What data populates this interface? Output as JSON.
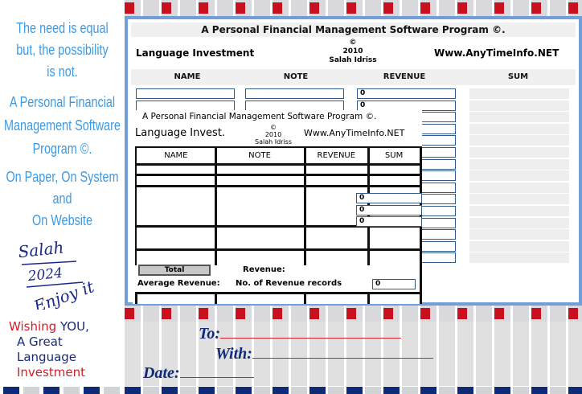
{
  "left": {
    "tagline": [
      "The need is equal",
      "but, the possibility",
      "is not."
    ],
    "program": [
      "A Personal Financial",
      "Management Software",
      "Program ©."
    ],
    "platforms": [
      "On Paper, On System",
      "and",
      "On Website"
    ],
    "signature": [
      "Salah",
      "2024",
      "Enjoy it"
    ],
    "wish": {
      "w1": "Wishing",
      "w2": "YOU,",
      "w3": "A Great",
      "w4": "Language",
      "w5": "Investment"
    }
  },
  "form": {
    "title": "A Personal Financial Management Software Program ©.",
    "app_name": "Language Investment",
    "copyright": "©",
    "year": "2010",
    "author": "Salah Idriss",
    "website": "Www.AnyTimeInfo.NET",
    "columns": [
      "NAME",
      "NOTE",
      "REVENUE",
      "SUM"
    ],
    "revenue_value": "0"
  },
  "paper": {
    "title": "A Personal Financial Management Software Program ©.",
    "app_name": "Language Invest.",
    "copyright": "©",
    "year": "2010",
    "author": "Salah Idriss",
    "website": "Www.AnyTimeInfo.NET",
    "columns": [
      "NAME",
      "NOTE",
      "REVENUE",
      "SUM"
    ],
    "total_button": "Total",
    "revenue_label": "Revenue:",
    "average_label": "Average Revenue:",
    "records_label": "No. of Revenue records",
    "records_value": "0",
    "revenue_value": "0"
  },
  "card": {
    "to": "To:",
    "with": "With:",
    "date": "Date:"
  },
  "colors": {
    "red": "#c8101e",
    "navy": "#0f2a78",
    "light_blue": "#3b9be6",
    "border_blue": "#6f9fd6"
  }
}
